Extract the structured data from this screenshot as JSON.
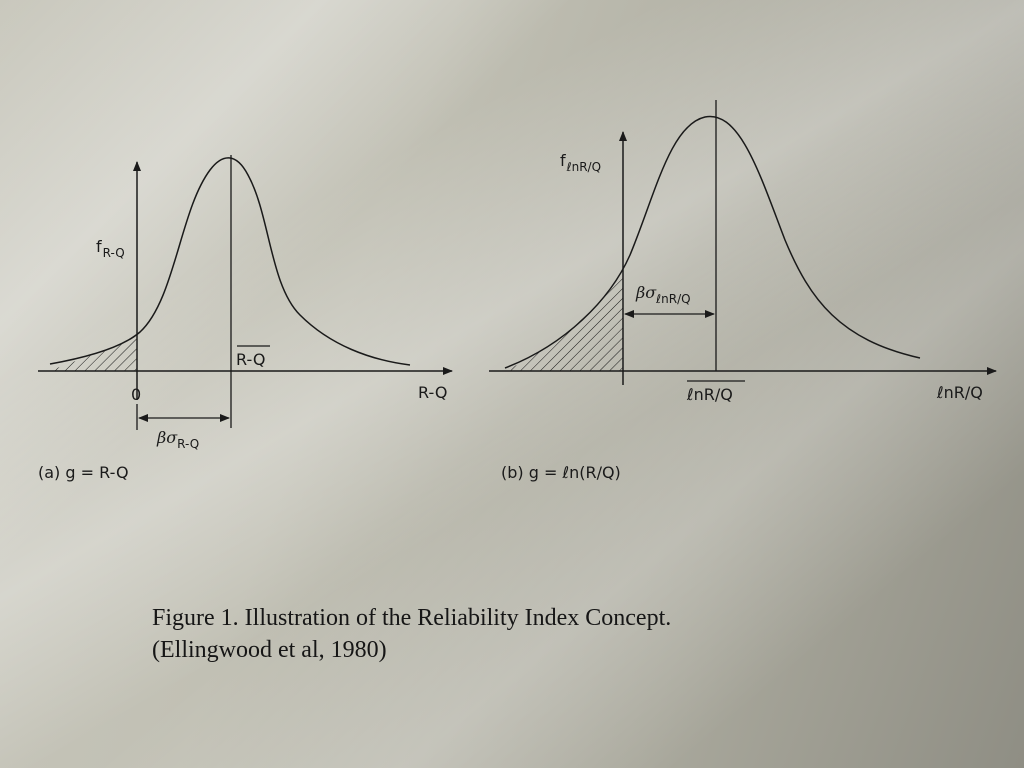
{
  "panel_a": {
    "y_label_main": "f",
    "y_label_sub": "R-Q",
    "x_axis_label": "R-Q",
    "zero_label": "0",
    "mean_label": "R-Q",
    "sigma_label_main": "βσ",
    "sigma_label_sub": "R-Q",
    "caption": "(a) g = R-Q"
  },
  "panel_b": {
    "y_label_main": "f",
    "y_label_sub": "ℓnR/Q",
    "x_axis_label": "ℓnR/Q",
    "mean_label": "ℓnR/Q",
    "sigma_label_main": "βσ",
    "sigma_label_sub": "ℓnR/Q",
    "caption": "(b) g = ℓn(R/Q)"
  },
  "caption": {
    "line1": "Figure 1.  Illustration of the Reliability Index Concept.",
    "line2": "(Ellingwood et al, 1980)"
  }
}
